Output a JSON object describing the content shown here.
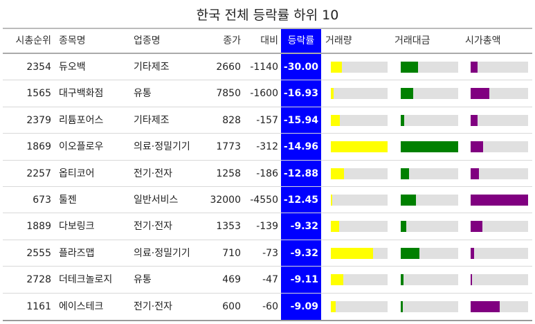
{
  "chart_data": {
    "type": "table",
    "title": "한국 전체 등락률 하위 10",
    "columns": [
      "시총순위",
      "종목명",
      "업종명",
      "종가",
      "대비",
      "등락률",
      "거래량",
      "거래대금",
      "시가총액"
    ],
    "colors": {
      "volume": "#ffff00",
      "trade_value": "#008000",
      "market_cap": "#800080",
      "highlight": "#0000ff",
      "bar_background": "#e0e0e0"
    },
    "rows": [
      {
        "rank": "2354",
        "name": "듀오백",
        "sector": "기타제조",
        "close": "2660",
        "change": "-1140",
        "rate": "-30.00",
        "volume": 0.2,
        "trade_value": 0.3,
        "market_cap": 0.12
      },
      {
        "rank": "1565",
        "name": "대구백화점",
        "sector": "유통",
        "close": "7850",
        "change": "-1600",
        "rate": "-16.93",
        "volume": 0.05,
        "trade_value": 0.22,
        "market_cap": 0.32
      },
      {
        "rank": "2379",
        "name": "리튬포어스",
        "sector": "기타제조",
        "close": "828",
        "change": "-157",
        "rate": "-15.94",
        "volume": 0.16,
        "trade_value": 0.06,
        "market_cap": 0.12
      },
      {
        "rank": "1869",
        "name": "이오플로우",
        "sector": "의료·정밀기기",
        "close": "1773",
        "change": "-312",
        "rate": "-14.96",
        "volume": 1.0,
        "trade_value": 1.0,
        "market_cap": 0.22
      },
      {
        "rank": "2257",
        "name": "옵티코어",
        "sector": "전기·전자",
        "close": "1258",
        "change": "-186",
        "rate": "-12.88",
        "volume": 0.23,
        "trade_value": 0.15,
        "market_cap": 0.15
      },
      {
        "rank": "673",
        "name": "툴젠",
        "sector": "일반서비스",
        "close": "32000",
        "change": "-4550",
        "rate": "-12.45",
        "volume": 0.02,
        "trade_value": 0.26,
        "market_cap": 1.0
      },
      {
        "rank": "1889",
        "name": "다보링크",
        "sector": "전기·전자",
        "close": "1353",
        "change": "-139",
        "rate": "-9.32",
        "volume": 0.14,
        "trade_value": 0.1,
        "market_cap": 0.21
      },
      {
        "rank": "2555",
        "name": "플라즈맵",
        "sector": "의료·정밀기기",
        "close": "710",
        "change": "-73",
        "rate": "-9.32",
        "volume": 0.74,
        "trade_value": 0.33,
        "market_cap": 0.06
      },
      {
        "rank": "2728",
        "name": "더테크놀로지",
        "sector": "유통",
        "close": "469",
        "change": "-47",
        "rate": "-9.11",
        "volume": 0.22,
        "trade_value": 0.05,
        "market_cap": 0.02
      },
      {
        "rank": "1161",
        "name": "에이스테크",
        "sector": "전기·전자",
        "close": "600",
        "change": "-60",
        "rate": "-9.09",
        "volume": 0.09,
        "trade_value": 0.03,
        "market_cap": 0.5
      }
    ]
  }
}
